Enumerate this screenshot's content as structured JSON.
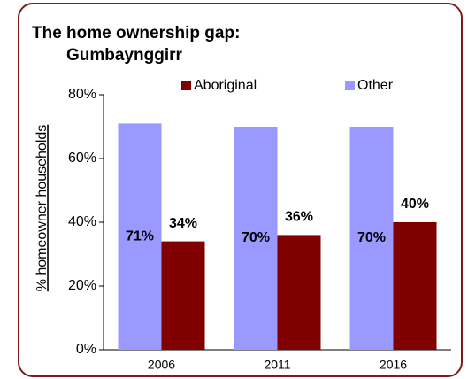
{
  "chart_data": {
    "type": "bar",
    "title": [
      "The home ownership gap:",
      "Gumbaynggirr"
    ],
    "y_label": "% homeowner households",
    "categories": [
      "2006",
      "2011",
      "2016"
    ],
    "series": [
      {
        "name": "Other",
        "color": "#9999ff",
        "values": [
          71,
          70,
          70
        ],
        "value_labels": [
          "71%",
          "70%",
          "70%"
        ]
      },
      {
        "name": "Aboriginal",
        "color": "#800000",
        "values": [
          34,
          36,
          40
        ],
        "value_labels": [
          "34%",
          "36%",
          "40%"
        ]
      }
    ],
    "legend_order": [
      1,
      0
    ],
    "legend": "top",
    "ylim": [
      0,
      80
    ],
    "yticks": [
      {
        "value": 0,
        "label": "0%"
      },
      {
        "value": 20,
        "label": "20%"
      },
      {
        "value": 40,
        "label": "40%"
      },
      {
        "value": 60,
        "label": "60%"
      },
      {
        "value": 80,
        "label": "80%"
      }
    ],
    "grid": false
  }
}
